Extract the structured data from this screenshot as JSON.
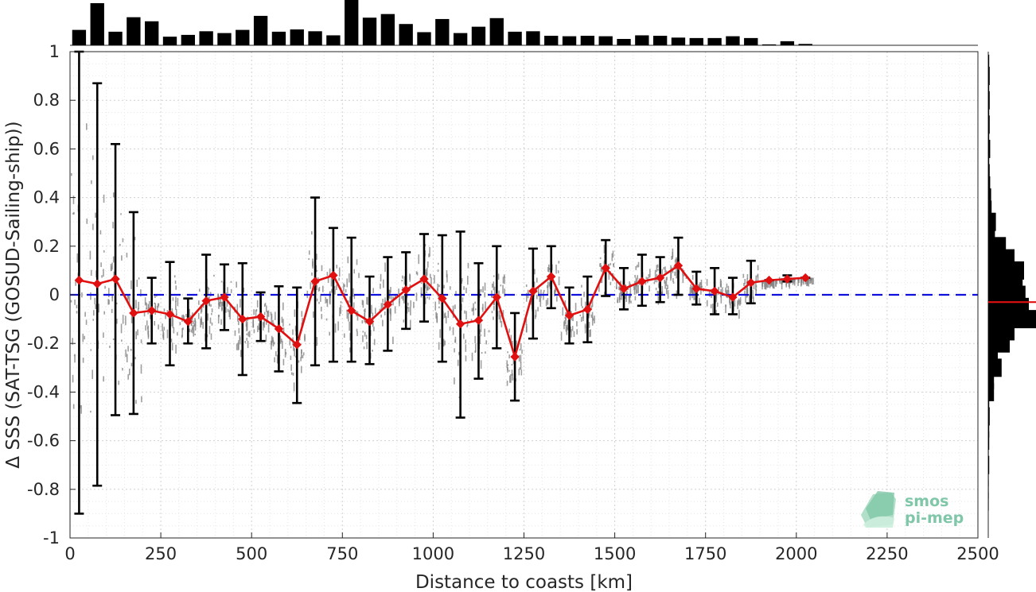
{
  "chart_data": {
    "type": "line",
    "xlabel": "Distance to coasts [km]",
    "ylabel": "Δ SSS (SAT-TSG (GOSUD-Sailing-ship))",
    "xlim": [
      0,
      2500
    ],
    "ylim": [
      -1,
      1
    ],
    "xticks": [
      0,
      250,
      500,
      750,
      1000,
      1250,
      1500,
      1750,
      2000,
      2250,
      2500
    ],
    "yticks": [
      1,
      0.8,
      0.6,
      0.4,
      0.2,
      0,
      -0.2,
      -0.4,
      -0.6,
      -0.8,
      -1
    ],
    "grid": true,
    "colors": {
      "mean_line": "#e01010",
      "zero_line": "#1010dd",
      "errorbar": "#000000",
      "scatter": "#808080",
      "hist": "#000000"
    },
    "series": [
      {
        "type": "line",
        "x": [
          25,
          75,
          125,
          175,
          225,
          275,
          325,
          375,
          425,
          475,
          525,
          575,
          625,
          675,
          725,
          775,
          825,
          875,
          925,
          975,
          1025,
          1075,
          1125,
          1175,
          1225,
          1275,
          1325,
          1375,
          1425,
          1475,
          1525,
          1575,
          1625,
          1675,
          1725,
          1775,
          1825,
          1875,
          1925,
          1975,
          2025
        ],
        "values": [
          0.06,
          0.045,
          0.065,
          -0.075,
          -0.065,
          -0.08,
          -0.11,
          -0.025,
          -0.01,
          -0.1,
          -0.09,
          -0.14,
          -0.205,
          0.055,
          0.08,
          -0.065,
          -0.11,
          -0.04,
          0.02,
          0.065,
          -0.015,
          -0.12,
          -0.105,
          -0.01,
          -0.255,
          0.015,
          0.075,
          -0.085,
          -0.06,
          0.11,
          0.025,
          0.055,
          0.07,
          0.12,
          0.025,
          0.015,
          -0.01,
          0.05,
          0.06,
          0.065,
          0.07
        ],
        "errorbars": [
          [
            -0.9,
            1
          ],
          [
            -0.785,
            0.87
          ],
          [
            -0.495,
            0.62
          ],
          [
            -0.49,
            0.34
          ],
          [
            -0.2,
            0.07
          ],
          [
            -0.29,
            0.135
          ],
          [
            -0.2,
            -0.015
          ],
          [
            -0.22,
            0.165
          ],
          [
            -0.145,
            0.125
          ],
          [
            -0.33,
            0.13
          ],
          [
            -0.19,
            0.01
          ],
          [
            -0.315,
            0.035
          ],
          [
            -0.445,
            0.03
          ],
          [
            -0.29,
            0.4
          ],
          [
            -0.275,
            0.275
          ],
          [
            -0.275,
            0.235
          ],
          [
            -0.285,
            0.075
          ],
          [
            -0.23,
            0.155
          ],
          [
            -0.14,
            0.175
          ],
          [
            -0.11,
            0.25
          ],
          [
            -0.275,
            0.245
          ],
          [
            -0.505,
            0.26
          ],
          [
            -0.345,
            0.13
          ],
          [
            -0.22,
            0.2
          ],
          [
            -0.435,
            -0.075
          ],
          [
            -0.18,
            0.19
          ],
          [
            -0.055,
            0.2
          ],
          [
            -0.2,
            0.03
          ],
          [
            -0.195,
            0.075
          ],
          [
            -0.005,
            0.225
          ],
          [
            -0.06,
            0.11
          ],
          [
            -0.045,
            0.165
          ],
          [
            -0.03,
            0.155
          ],
          [
            0,
            0.235
          ],
          [
            -0.04,
            0.095
          ],
          [
            -0.08,
            0.11
          ],
          [
            -0.08,
            0.07
          ],
          [
            -0.035,
            0.14
          ],
          [
            0.06,
            0.06
          ],
          [
            0.055,
            0.08
          ],
          [
            0.07,
            0.07
          ]
        ]
      },
      {
        "type": "reference_line",
        "y": 0
      }
    ],
    "x_histogram": {
      "x": [
        25,
        75,
        125,
        175,
        225,
        275,
        325,
        375,
        425,
        475,
        525,
        575,
        625,
        675,
        725,
        775,
        825,
        875,
        925,
        975,
        1025,
        1075,
        1125,
        1175,
        1225,
        1275,
        1325,
        1375,
        1425,
        1475,
        1525,
        1575,
        1625,
        1675,
        1725,
        1775,
        1825,
        1875,
        1925,
        1975,
        2025
      ],
      "relative_counts": [
        0.34,
        0.93,
        0.3,
        0.62,
        0.53,
        0.19,
        0.23,
        0.31,
        0.27,
        0.34,
        0.65,
        0.3,
        0.35,
        0.31,
        0.22,
        1.0,
        0.61,
        0.69,
        0.47,
        0.29,
        0.58,
        0.27,
        0.41,
        0.6,
        0.3,
        0.31,
        0.21,
        0.2,
        0.21,
        0.2,
        0.14,
        0.22,
        0.21,
        0.17,
        0.16,
        0.16,
        0.2,
        0.16,
        0.02,
        0.09,
        0.03
      ]
    },
    "y_histogram": {
      "y": [
        0.95,
        0.9,
        0.85,
        0.8,
        0.75,
        0.7,
        0.65,
        0.6,
        0.55,
        0.5,
        0.45,
        0.4,
        0.35,
        0.3,
        0.25,
        0.2,
        0.15,
        0.1,
        0.05,
        0,
        -0.05,
        -0.1,
        -0.15,
        -0.2,
        -0.25,
        -0.3,
        -0.35,
        -0.4,
        -0.45,
        -0.5,
        -0.55,
        -0.6,
        -0.65,
        -0.7,
        -0.75,
        -0.8,
        -0.85
      ],
      "relative_counts": [
        0.02,
        0.03,
        0.02,
        0.03,
        0.02,
        0.03,
        0.02,
        0.04,
        0.02,
        0.03,
        0.04,
        0.06,
        0.07,
        0.16,
        0.14,
        0.37,
        0.55,
        0.75,
        0.72,
        0.78,
        0.85,
        1.0,
        0.55,
        0.45,
        0.2,
        0.28,
        0.12,
        0.12,
        0.02,
        0.03,
        0.02,
        0.02,
        0.01,
        0.02,
        0.01,
        0.01,
        0.01
      ],
      "median_line": -0.03
    }
  },
  "logo": {
    "line1": "smos",
    "line2": "pi-mep"
  }
}
